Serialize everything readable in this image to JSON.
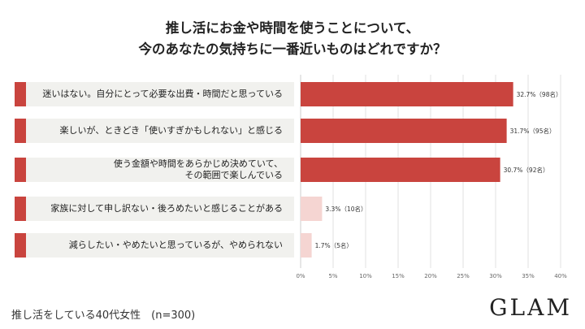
{
  "title_line1": "推し活にお金や時間を使うことについて、",
  "title_line2": "今のあなたの気持ちに一番近いものはどれですか？",
  "footer": "推し活をしている40代女性　(n=300)",
  "logo": "GLAM",
  "colors": {
    "main_bar": "#c9443e",
    "minor_bar": "#f5d5d2",
    "label_tab": "#c9443e",
    "label_bg": "#f1f1ee"
  },
  "chart_data": {
    "type": "bar",
    "orientation": "horizontal",
    "categories": [
      "迷いはない。自分にとって必要な出費・時間だと思っている",
      "楽しいが、ときどき「使いすぎかもしれない」と感じる",
      "使う金額や時間をあらかじめ決めていて、\nその範囲で楽しんでいる",
      "家族に対して申し訳ない・後ろめたいと感じることがある",
      "減らしたい・やめたいと思っているが、やめられない"
    ],
    "values": [
      32.7,
      31.7,
      30.7,
      3.3,
      1.7
    ],
    "data_labels": [
      "32.7%（98名）",
      "31.7%（95名）",
      "30.7%（92名）",
      "3.3%（10名）",
      "1.7%（5名）"
    ],
    "xlim": [
      0,
      40
    ],
    "ticks": [
      0,
      5,
      10,
      15,
      20,
      25,
      30,
      35,
      40
    ],
    "tick_labels": [
      "0%",
      "5%",
      "10%",
      "15%",
      "20%",
      "25%",
      "30%",
      "35%",
      "40%"
    ],
    "grid": true
  }
}
